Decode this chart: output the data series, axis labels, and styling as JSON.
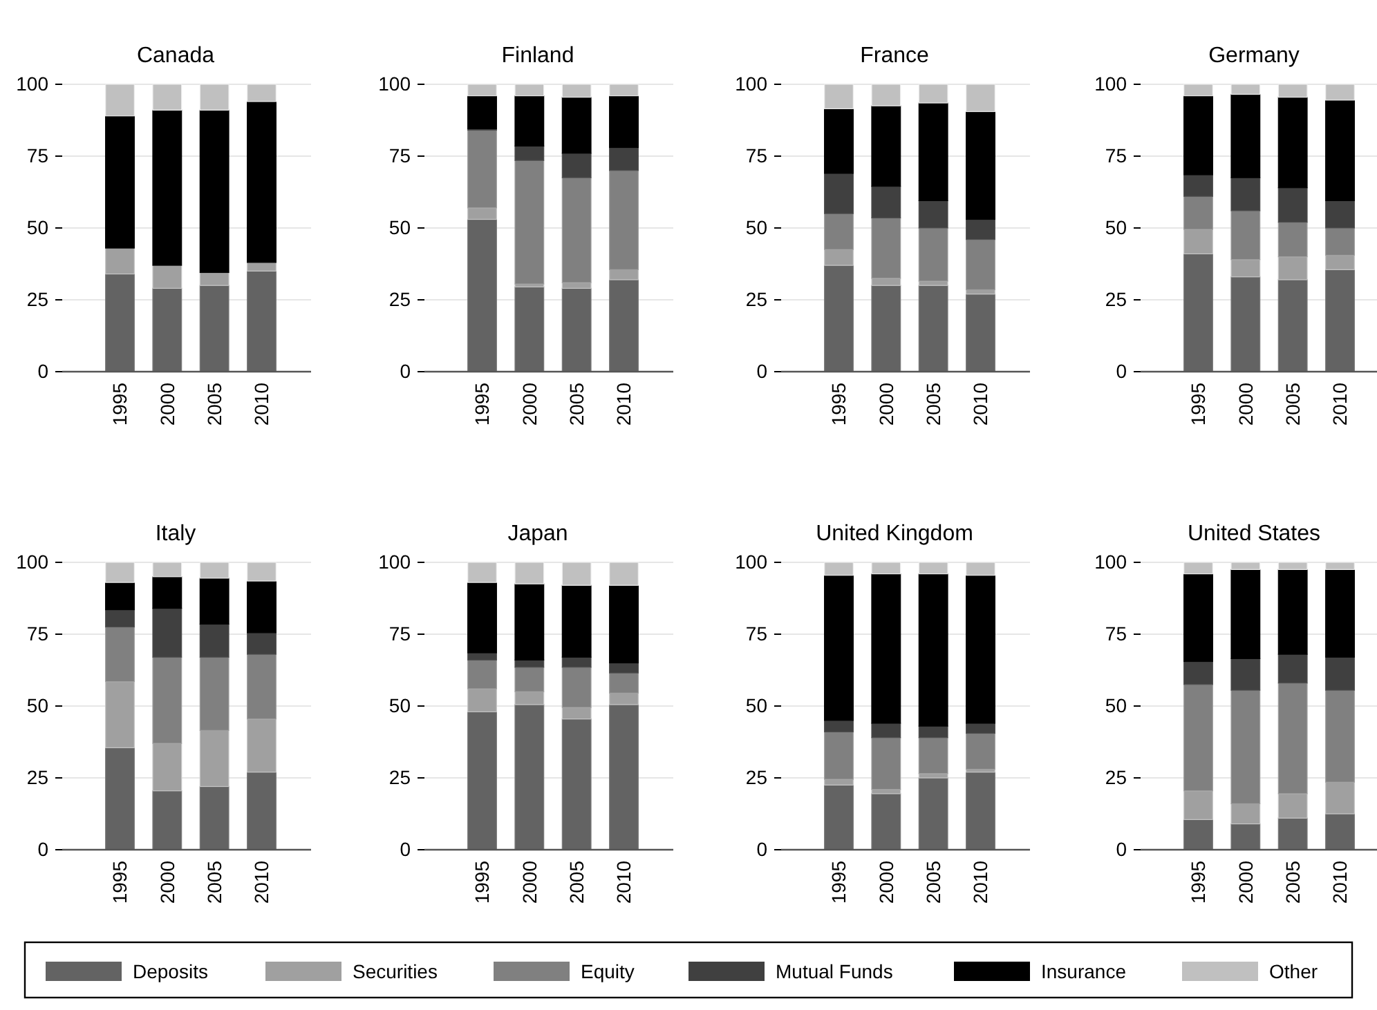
{
  "chart_data": [
    {
      "type": "bar",
      "title": "Canada",
      "categories": [
        "1995",
        "2000",
        "2005",
        "2010"
      ],
      "stacked": true,
      "ylim": [
        0,
        100
      ],
      "yticks": [
        0,
        25,
        50,
        75,
        100
      ],
      "grid": "y",
      "legend": "bottom",
      "series": [
        {
          "name": "Deposits",
          "color": "#636363",
          "values": [
            34,
            29,
            30,
            35
          ]
        },
        {
          "name": "Securities",
          "color": "#a0a0a0",
          "values": [
            9,
            8,
            4.5,
            3
          ]
        },
        {
          "name": "Equity",
          "color": "#808080",
          "values": [
            0,
            0,
            0,
            0
          ]
        },
        {
          "name": "Mutual Funds",
          "color": "#404040",
          "values": [
            0,
            0,
            0,
            0
          ]
        },
        {
          "name": "Insurance",
          "color": "#000000",
          "values": [
            46,
            54,
            56.5,
            56
          ]
        },
        {
          "name": "Other",
          "color": "#c0c0c0",
          "values": [
            11,
            9,
            9,
            6
          ]
        }
      ]
    },
    {
      "type": "bar",
      "title": "Finland",
      "categories": [
        "1995",
        "2000",
        "2005",
        "2010"
      ],
      "stacked": true,
      "ylim": [
        0,
        100
      ],
      "yticks": [
        0,
        25,
        50,
        75,
        100
      ],
      "grid": "y",
      "series": [
        {
          "color": "#636363",
          "values": [
            53,
            29.5,
            29,
            32
          ]
        },
        {
          "color": "#a0a0a0",
          "values": [
            4,
            1,
            2,
            3.5
          ]
        },
        {
          "color": "#808080",
          "values": [
            27,
            43,
            36.5,
            34.5
          ]
        },
        {
          "color": "#404040",
          "values": [
            0.5,
            5,
            8.5,
            8
          ]
        },
        {
          "color": "#000000",
          "values": [
            11.5,
            17.5,
            19.5,
            18
          ]
        },
        {
          "color": "#c0c0c0",
          "values": [
            4,
            4,
            4.5,
            4
          ]
        }
      ]
    },
    {
      "type": "bar",
      "title": "France",
      "categories": [
        "1995",
        "2000",
        "2005",
        "2010"
      ],
      "stacked": true,
      "ylim": [
        0,
        100
      ],
      "yticks": [
        0,
        25,
        50,
        75,
        100
      ],
      "grid": "y",
      "series": [
        {
          "color": "#636363",
          "values": [
            37,
            30,
            30,
            27
          ]
        },
        {
          "color": "#a0a0a0",
          "values": [
            5.5,
            2.5,
            1.5,
            1.5
          ]
        },
        {
          "color": "#808080",
          "values": [
            12.5,
            21,
            18.5,
            17.5
          ]
        },
        {
          "color": "#404040",
          "values": [
            14,
            11,
            9.5,
            7
          ]
        },
        {
          "color": "#000000",
          "values": [
            22.5,
            28,
            34,
            37.5
          ]
        },
        {
          "color": "#c0c0c0",
          "values": [
            8.5,
            7.5,
            6.5,
            9.5
          ]
        }
      ]
    },
    {
      "type": "bar",
      "title": "Germany",
      "categories": [
        "1995",
        "2000",
        "2005",
        "2010"
      ],
      "stacked": true,
      "ylim": [
        0,
        100
      ],
      "yticks": [
        0,
        25,
        50,
        75,
        100
      ],
      "grid": "y",
      "series": [
        {
          "color": "#636363",
          "values": [
            41,
            33,
            32,
            35.5
          ]
        },
        {
          "color": "#a0a0a0",
          "values": [
            8.5,
            6,
            8,
            5
          ]
        },
        {
          "color": "#808080",
          "values": [
            11.5,
            17,
            12,
            9.5
          ]
        },
        {
          "color": "#404040",
          "values": [
            7.5,
            11.5,
            12,
            9.5
          ]
        },
        {
          "color": "#000000",
          "values": [
            27.5,
            29,
            31.5,
            35
          ]
        },
        {
          "color": "#c0c0c0",
          "values": [
            4,
            3.5,
            4.5,
            5.5
          ]
        }
      ]
    },
    {
      "type": "bar",
      "title": "Italy",
      "categories": [
        "1995",
        "2000",
        "2005",
        "2010"
      ],
      "stacked": true,
      "ylim": [
        0,
        100
      ],
      "yticks": [
        0,
        25,
        50,
        75,
        100
      ],
      "grid": "y",
      "series": [
        {
          "color": "#636363",
          "values": [
            35.5,
            20.5,
            22,
            27
          ]
        },
        {
          "color": "#a0a0a0",
          "values": [
            23,
            16.5,
            19.5,
            18.5
          ]
        },
        {
          "color": "#808080",
          "values": [
            19,
            30,
            25.5,
            22.5
          ]
        },
        {
          "color": "#404040",
          "values": [
            6,
            17,
            11.5,
            7.5
          ]
        },
        {
          "color": "#000000",
          "values": [
            9.5,
            11,
            16,
            18
          ]
        },
        {
          "color": "#c0c0c0",
          "values": [
            7,
            5,
            5.5,
            6.5
          ]
        }
      ]
    },
    {
      "type": "bar",
      "title": "Japan",
      "categories": [
        "1995",
        "2000",
        "2005",
        "2010"
      ],
      "stacked": true,
      "ylim": [
        0,
        100
      ],
      "yticks": [
        0,
        25,
        50,
        75,
        100
      ],
      "grid": "y",
      "series": [
        {
          "color": "#636363",
          "values": [
            48,
            50.5,
            45.5,
            50.5
          ]
        },
        {
          "color": "#a0a0a0",
          "values": [
            8,
            4.5,
            4,
            4
          ]
        },
        {
          "color": "#808080",
          "values": [
            10,
            8.5,
            14,
            7
          ]
        },
        {
          "color": "#404040",
          "values": [
            2.5,
            2.5,
            3.5,
            3.5
          ]
        },
        {
          "color": "#000000",
          "values": [
            24.5,
            26.5,
            25,
            27
          ]
        },
        {
          "color": "#c0c0c0",
          "values": [
            7,
            7.5,
            8,
            8
          ]
        }
      ]
    },
    {
      "type": "bar",
      "title": "United Kingdom",
      "categories": [
        "1995",
        "2000",
        "2005",
        "2010"
      ],
      "stacked": true,
      "ylim": [
        0,
        100
      ],
      "yticks": [
        0,
        25,
        50,
        75,
        100
      ],
      "grid": "y",
      "series": [
        {
          "color": "#636363",
          "values": [
            22.5,
            19.5,
            25,
            27
          ]
        },
        {
          "color": "#a0a0a0",
          "values": [
            2,
            1.5,
            1.5,
            1
          ]
        },
        {
          "color": "#808080",
          "values": [
            16.5,
            18,
            12.5,
            12.5
          ]
        },
        {
          "color": "#404040",
          "values": [
            4,
            5,
            4,
            3.5
          ]
        },
        {
          "color": "#000000",
          "values": [
            50.5,
            52,
            53,
            51.5
          ]
        },
        {
          "color": "#c0c0c0",
          "values": [
            4.5,
            4,
            4,
            4.5
          ]
        }
      ]
    },
    {
      "type": "bar",
      "title": "United States",
      "categories": [
        "1995",
        "2000",
        "2005",
        "2010"
      ],
      "stacked": true,
      "ylim": [
        0,
        100
      ],
      "yticks": [
        0,
        25,
        50,
        75,
        100
      ],
      "grid": "y",
      "series": [
        {
          "color": "#636363",
          "values": [
            10.5,
            9,
            11,
            12.5
          ]
        },
        {
          "color": "#a0a0a0",
          "values": [
            10,
            7,
            8.5,
            11
          ]
        },
        {
          "color": "#808080",
          "values": [
            37,
            39.5,
            38.5,
            32
          ]
        },
        {
          "color": "#404040",
          "values": [
            8,
            11,
            10,
            11.5
          ]
        },
        {
          "color": "#000000",
          "values": [
            30.5,
            31,
            29.5,
            30.5
          ]
        },
        {
          "color": "#c0c0c0",
          "values": [
            4,
            2.5,
            2.5,
            2.5
          ]
        }
      ]
    }
  ]
}
